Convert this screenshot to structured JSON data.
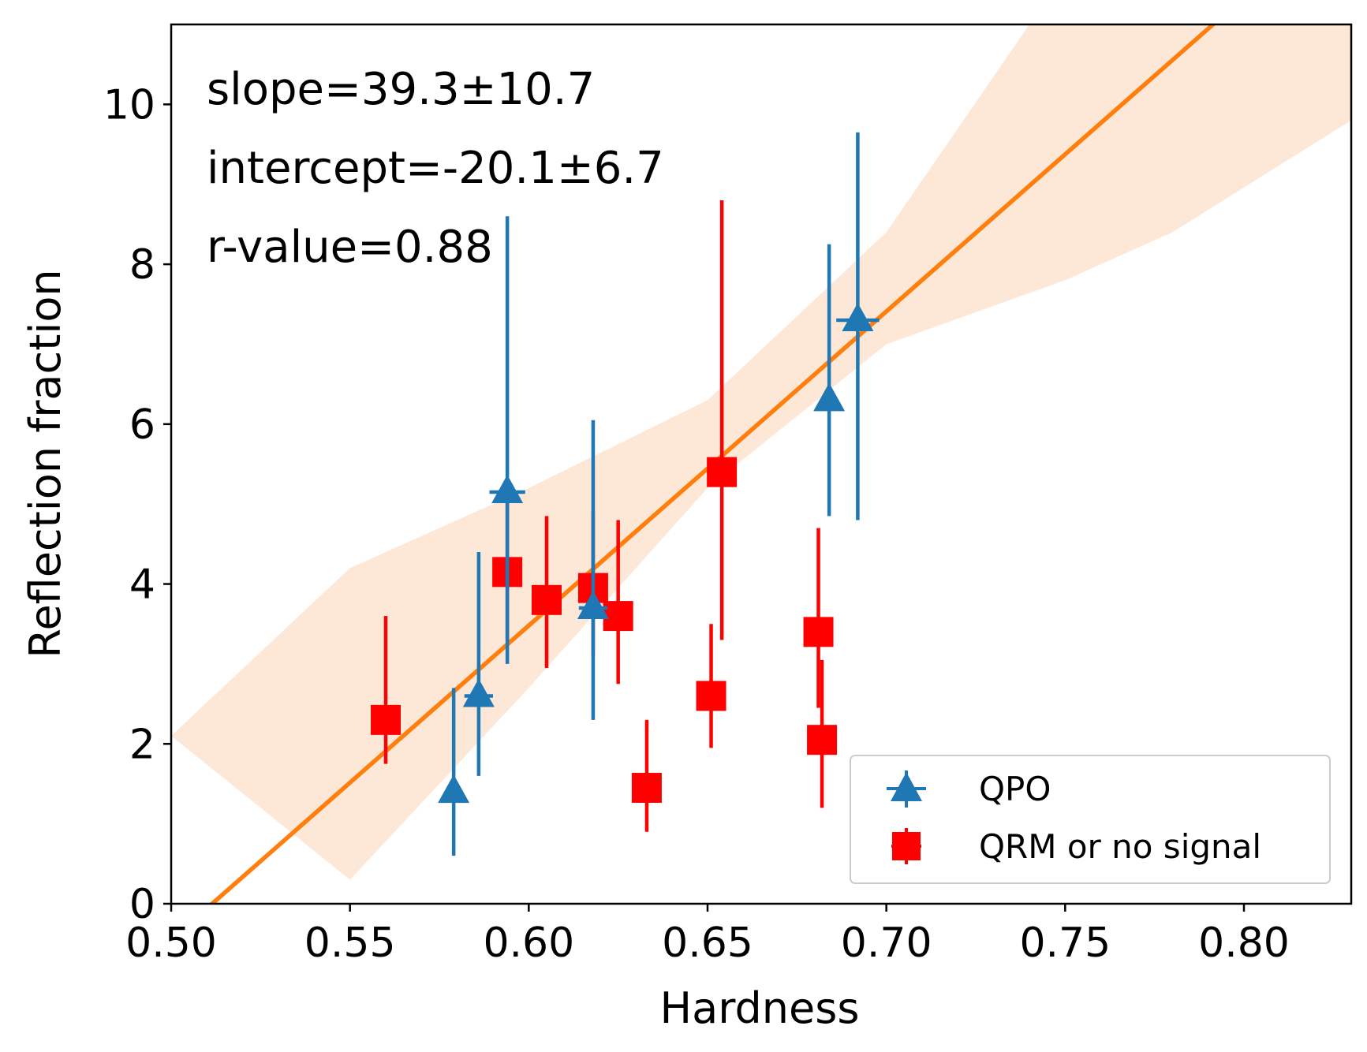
{
  "chart_data": {
    "type": "scatter",
    "xlabel": "Hardness",
    "ylabel": "Reflection fraction",
    "xlim": [
      0.5,
      0.83
    ],
    "ylim": [
      0,
      11
    ],
    "xticks": [
      0.5,
      0.55,
      0.6,
      0.65,
      0.7,
      0.75,
      0.8
    ],
    "xtick_labels": [
      "0.50",
      "0.55",
      "0.60",
      "0.65",
      "0.70",
      "0.75",
      "0.80"
    ],
    "yticks": [
      0,
      2,
      4,
      6,
      8,
      10
    ],
    "ytick_labels": [
      "0",
      "2",
      "4",
      "6",
      "8",
      "10"
    ],
    "annotations": [
      "slope=39.3±10.7",
      "intercept=-20.1±6.7",
      "r-value=0.88"
    ],
    "fit": {
      "slope": 39.3,
      "intercept": -20.1,
      "color": "#ff7f0e",
      "band_color": "#fde8d8",
      "band_upper": [
        [
          0.5,
          2.1
        ],
        [
          0.55,
          4.2
        ],
        [
          0.6,
          5.2
        ],
        [
          0.65,
          6.3
        ],
        [
          0.7,
          8.4
        ],
        [
          0.74,
          11.0
        ],
        [
          0.83,
          11.0
        ]
      ],
      "band_lower": [
        [
          0.55,
          0.3
        ],
        [
          0.6,
          2.7
        ],
        [
          0.65,
          5.2
        ],
        [
          0.7,
          7.0
        ],
        [
          0.75,
          7.8
        ],
        [
          0.78,
          8.4
        ],
        [
          0.83,
          9.8
        ]
      ]
    },
    "series": [
      {
        "name": "QPO",
        "marker": "triangle",
        "color": "#1f77b4",
        "points": [
          {
            "x": 0.579,
            "y": 1.4,
            "ylo": 0.6,
            "yhi": 2.7,
            "xerr": 0.002
          },
          {
            "x": 0.586,
            "y": 2.6,
            "ylo": 1.6,
            "yhi": 4.4,
            "xerr": 0.004
          },
          {
            "x": 0.594,
            "y": 5.15,
            "ylo": 3.0,
            "yhi": 8.6,
            "xerr": 0.005
          },
          {
            "x": 0.618,
            "y": 3.7,
            "ylo": 2.3,
            "yhi": 6.05,
            "xerr": 0.004
          },
          {
            "x": 0.684,
            "y": 6.3,
            "ylo": 4.85,
            "yhi": 8.25,
            "xerr": 0.002
          },
          {
            "x": 0.692,
            "y": 7.3,
            "ylo": 4.8,
            "yhi": 9.65,
            "xerr": 0.006
          }
        ]
      },
      {
        "name": "QRM or no signal",
        "marker": "square",
        "color": "#ff0000",
        "points": [
          {
            "x": 0.56,
            "y": 2.3,
            "ylo": 1.75,
            "yhi": 3.6,
            "xerr": 0.001
          },
          {
            "x": 0.594,
            "y": 4.15,
            "ylo": 3.3,
            "yhi": 5.3,
            "xerr": 0.001
          },
          {
            "x": 0.605,
            "y": 3.8,
            "ylo": 2.95,
            "yhi": 4.85,
            "xerr": 0.001
          },
          {
            "x": 0.618,
            "y": 3.95,
            "ylo": 3.1,
            "yhi": 4.9,
            "xerr": 0.001
          },
          {
            "x": 0.625,
            "y": 3.6,
            "ylo": 2.75,
            "yhi": 4.8,
            "xerr": 0.001
          },
          {
            "x": 0.633,
            "y": 1.45,
            "ylo": 0.9,
            "yhi": 2.3,
            "xerr": 0.001
          },
          {
            "x": 0.651,
            "y": 2.6,
            "ylo": 1.95,
            "yhi": 3.5,
            "xerr": 0.001
          },
          {
            "x": 0.654,
            "y": 5.4,
            "ylo": 3.3,
            "yhi": 8.8,
            "xerr": 0.001
          },
          {
            "x": 0.681,
            "y": 3.4,
            "ylo": 2.45,
            "yhi": 4.7,
            "xerr": 0.001
          },
          {
            "x": 0.682,
            "y": 2.05,
            "ylo": 1.2,
            "yhi": 3.05,
            "xerr": 0.001
          }
        ]
      }
    ],
    "legend_position": "lower-right"
  }
}
